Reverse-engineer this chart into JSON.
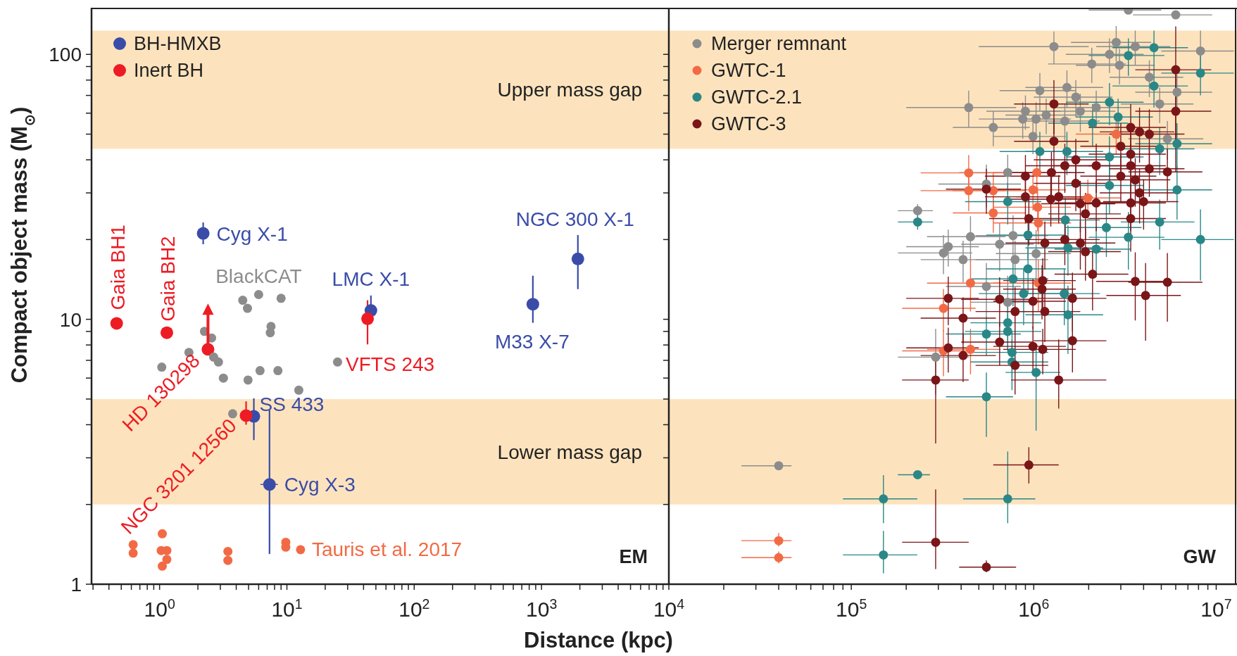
{
  "chart_data": [
    {
      "type": "scatter",
      "xlabel": "Distance (kpc)",
      "ylabel": "Compact object mass (M$_{⊙}$)",
      "log": "xy",
      "marker": "circle",
      "legend": "top left",
      "xlim": [
        0.292,
        10000
      ],
      "ylim": [
        1,
        150
      ],
      "xticks": [
        {
          "value": 0.3,
          "label": null
        },
        {
          "value": 0.4,
          "label": null
        },
        {
          "value": 0.5,
          "label": null
        },
        {
          "value": 0.6,
          "label": null
        },
        {
          "value": 0.7,
          "label": null
        },
        {
          "value": 0.8,
          "label": null
        },
        {
          "value": 0.9,
          "label": null
        },
        {
          "value": 1,
          "label": "10$^{0}$"
        },
        {
          "value": 2,
          "label": null
        },
        {
          "value": 3,
          "label": null
        },
        {
          "value": 4,
          "label": null
        },
        {
          "value": 5,
          "label": null
        },
        {
          "value": 6,
          "label": null
        },
        {
          "value": 7,
          "label": null
        },
        {
          "value": 8,
          "label": null
        },
        {
          "value": 9,
          "label": null
        },
        {
          "value": 10,
          "label": "10$^{1}$"
        },
        {
          "value": 20,
          "label": null
        },
        {
          "value": 30,
          "label": null
        },
        {
          "value": 40,
          "label": null
        },
        {
          "value": 50,
          "label": null
        },
        {
          "value": 60,
          "label": null
        },
        {
          "value": 70,
          "label": null
        },
        {
          "value": 80,
          "label": null
        },
        {
          "value": 90,
          "label": null
        },
        {
          "value": 100,
          "label": "10$^{2}$"
        },
        {
          "value": 200,
          "label": null
        },
        {
          "value": 300,
          "label": null
        },
        {
          "value": 400,
          "label": null
        },
        {
          "value": 500,
          "label": null
        },
        {
          "value": 600,
          "label": null
        },
        {
          "value": 700,
          "label": null
        },
        {
          "value": 800,
          "label": null
        },
        {
          "value": 900,
          "label": null
        },
        {
          "value": 1000,
          "label": "10$^{3}$"
        },
        {
          "value": 2000,
          "label": null
        },
        {
          "value": 3000,
          "label": null
        },
        {
          "value": 4000,
          "label": null
        },
        {
          "value": 5000,
          "label": null
        },
        {
          "value": 6000,
          "label": null
        },
        {
          "value": 7000,
          "label": null
        },
        {
          "value": 8000,
          "label": null
        },
        {
          "value": 9000,
          "label": null
        }
      ],
      "yticks": [
        1,
        {
          "value": 2,
          "label": null
        },
        {
          "value": 3,
          "label": null
        },
        {
          "value": 4,
          "label": null
        },
        {
          "value": 5,
          "label": null
        },
        {
          "value": 6,
          "label": null
        },
        {
          "value": 7,
          "label": null
        },
        {
          "value": 8,
          "label": null
        },
        {
          "value": 9,
          "label": null
        },
        10,
        {
          "value": 20,
          "label": null
        },
        {
          "value": 30,
          "label": null
        },
        {
          "value": 40,
          "label": null
        },
        {
          "value": 50,
          "label": null
        },
        {
          "value": 60,
          "label": null
        },
        {
          "value": 70,
          "label": null
        },
        {
          "value": 80,
          "label": null
        },
        {
          "value": 90,
          "label": null
        },
        100
      ],
      "bands": [
        {
          "axis": "y",
          "from": 44,
          "to": 123,
          "label": "Upper mass gap",
          "color": "#fde3bd"
        },
        {
          "axis": "y",
          "from": 2,
          "to": 5,
          "label": "Lower mass gap",
          "color": "#fde3bd"
        }
      ],
      "series": [
        {
          "name": "BH-HMXB",
          "color": "#3a4ca8",
          "x": [
            2.2,
            45.7,
            855,
            1930,
            5.5,
            7.3
          ],
          "values": [
            21.1,
            10.8,
            11.4,
            16.9,
            4.3,
            2.38
          ],
          "errors": [
            [
              19.2,
              23.2
            ],
            [
              9.9,
              12.3
            ],
            [
              9.7,
              14.6
            ],
            [
              13,
              20.8
            ],
            [
              3.5,
              5.03
            ],
            [
              1.3,
              4.54
            ]
          ],
          "xerrors": [
            null,
            null,
            null,
            null,
            null,
            [
              6.2,
              8.5
            ]
          ]
        },
        {
          "name": "Inert BH",
          "color": "#ed1c24",
          "x": [
            0.46,
            1.14,
            2.4,
            4.78,
            43
          ],
          "values": [
            9.65,
            8.9,
            7.7,
            4.33,
            10.05
          ],
          "errors": [
            null,
            null,
            null,
            [
              4.0,
              4.9
            ],
            [
              8.04,
              11.8
            ]
          ]
        },
        {
          "name": "BlackCAT",
          "color": "#8c8c8c",
          "x": [
            4.5,
            6.0,
            9.0,
            4.9,
            7.5,
            7.4,
            1.7,
            1.04,
            2.25,
            2.56,
            2.66,
            2.9,
            3.17,
            4.95,
            6.15,
            8.5,
            12.4,
            3.75,
            25
          ],
          "values": [
            11.8,
            12.4,
            12.0,
            11.0,
            9.4,
            8.9,
            7.5,
            6.6,
            9.0,
            8.5,
            7.2,
            6.9,
            6.0,
            5.9,
            6.4,
            6.4,
            5.4,
            4.4,
            6.9
          ]
        },
        {
          "name": "Tauris et al. 2017",
          "color": "#f26a45",
          "x": [
            1.05,
            0.62,
            0.62,
            1.03,
            1.14,
            1.14,
            1.05,
            3.44,
            3.44,
            9.8,
            9.8,
            12.8
          ],
          "values": [
            1.55,
            1.41,
            1.31,
            1.34,
            1.34,
            1.24,
            1.17,
            1.33,
            1.23,
            1.44,
            1.38,
            1.35
          ]
        }
      ],
      "annotations": [
        {
          "text": "Gaia BH1",
          "x": 0.46,
          "y": 9.65
        },
        {
          "text": "Gaia BH2",
          "x": 1.14,
          "y": 8.9
        },
        {
          "text": "HD 130298",
          "x": 2.4,
          "y": 7.7
        },
        {
          "text": "NGC 3201 12560",
          "x": 4.78,
          "y": 4.33
        },
        {
          "text": "VFTS 243",
          "x": 43,
          "y": 10.05
        },
        {
          "text": "Cyg X-1",
          "x": 2.2,
          "y": 21.1
        },
        {
          "text": "LMC X-1",
          "x": 45.7,
          "y": 10.8
        },
        {
          "text": "M33 X-7",
          "x": 855,
          "y": 11.4
        },
        {
          "text": "NGC 300 X-1",
          "x": 1930,
          "y": 16.9
        },
        {
          "text": "SS 433",
          "x": 5.5,
          "y": 4.3
        },
        {
          "text": "Cyg X-3",
          "x": 7.3,
          "y": 2.38
        },
        "EM"
      ]
    },
    {
      "type": "scatter",
      "log": "xy",
      "marker": "circle",
      "legend": "top left",
      "tick_labels": "x",
      "xlim": [
        10000,
        13000000
      ],
      "ylim": [
        1,
        150
      ],
      "xticks": [
        {
          "value": 10000,
          "label": "10$^{4}$"
        },
        {
          "value": 20000,
          "label": null
        },
        {
          "value": 30000,
          "label": null
        },
        {
          "value": 40000,
          "label": null
        },
        {
          "value": 50000,
          "label": null
        },
        {
          "value": 60000,
          "label": null
        },
        {
          "value": 70000,
          "label": null
        },
        {
          "value": 80000,
          "label": null
        },
        {
          "value": 90000,
          "label": null
        },
        {
          "value": 100000,
          "label": "10$^{5}$"
        },
        {
          "value": 200000,
          "label": null
        },
        {
          "value": 300000,
          "label": null
        },
        {
          "value": 400000,
          "label": null
        },
        {
          "value": 500000,
          "label": null
        },
        {
          "value": 600000,
          "label": null
        },
        {
          "value": 700000,
          "label": null
        },
        {
          "value": 800000,
          "label": null
        },
        {
          "value": 900000,
          "label": null
        },
        {
          "value": 1000000,
          "label": "10$^{6}$"
        },
        {
          "value": 2000000,
          "label": null
        },
        {
          "value": 3000000,
          "label": null
        },
        {
          "value": 4000000,
          "label": null
        },
        {
          "value": 5000000,
          "label": null
        },
        {
          "value": 6000000,
          "label": null
        },
        {
          "value": 7000000,
          "label": null
        },
        {
          "value": 8000000,
          "label": null
        },
        {
          "value": 9000000,
          "label": null
        },
        {
          "value": 10000000,
          "label": "10$^{7}$"
        }
      ],
      "yticks": [
        1,
        {
          "value": 2,
          "label": null
        },
        {
          "value": 3,
          "label": null
        },
        {
          "value": 4,
          "label": null
        },
        {
          "value": 5,
          "label": null
        },
        {
          "value": 6,
          "label": null
        },
        {
          "value": 7,
          "label": null
        },
        {
          "value": 8,
          "label": null
        },
        {
          "value": 9,
          "label": null
        },
        10,
        {
          "value": 20,
          "label": null
        },
        {
          "value": 30,
          "label": null
        },
        {
          "value": 40,
          "label": null
        },
        {
          "value": 50,
          "label": null
        },
        {
          "value": 60,
          "label": null
        },
        {
          "value": 70,
          "label": null
        },
        {
          "value": 80,
          "label": null
        },
        {
          "value": 90,
          "label": null
        },
        100
      ],
      "bands": [
        {
          "axis": "y",
          "from": 44,
          "to": 123,
          "color": "#fde3bd"
        },
        {
          "axis": "y",
          "from": 2,
          "to": 5,
          "color": "#fde3bd"
        }
      ],
      "series": [
        {
          "name": "Merger remnant",
          "color": "#8c8c8c",
          "x": [
            40000.0,
            231000.0,
            320000.0,
            340000.0,
            410000.0,
            450000.0,
            290000.0,
            550000.0,
            650000.0,
            720000.0,
            720000.0,
            770000.0,
            790000.0,
            1030000.0,
            550000.0,
            440000.0,
            600000.0,
            870000.0,
            900000.0,
            990000.0,
            1030000.0,
            1080000.0,
            1170000.0,
            1290000.0,
            1480000.0,
            1520000.0,
            1700000.0,
            1800000.0,
            2080000.0,
            2200000.0,
            2600000.0,
            2830000.0,
            2950000.0,
            3300000.0,
            3600000.0,
            4300000.0,
            4900000.0,
            5400000.0,
            6000000.0,
            6100000.0,
            8200000.0
          ],
          "values": [
            2.8,
            25.7,
            17.8,
            18.8,
            16.8,
            20.5,
            7.2,
            13.3,
            19.2,
            11.6,
            35.8,
            20.7,
            16.8,
            17.7,
            32.4,
            63,
            53,
            57,
            61,
            49,
            57,
            73,
            59,
            107,
            56,
            75,
            69,
            61,
            92,
            63,
            100,
            111,
            91,
            147,
            107,
            82,
            65,
            48,
            141,
            72,
            103
          ],
          "errors": [
            null,
            1.5,
            3,
            3,
            3,
            4,
            2,
            3,
            4,
            3,
            6,
            4,
            3,
            4,
            6,
            10,
            8,
            9,
            9,
            7,
            9,
            12,
            9,
            15,
            9,
            12,
            11,
            10,
            14,
            10,
            15,
            17,
            14,
            null,
            16,
            13,
            10,
            8,
            null,
            12,
            20
          ],
          "xerrors": [
            [
              25000.0,
              47000.0
            ],
            [
              180000.0,
              280000.0
            ],
            [
              180000.0,
              460000.0
            ],
            [
              200000.0,
              500000.0
            ],
            [
              240000.0,
              650000.0
            ],
            [
              260000.0,
              700000.0
            ],
            [
              180000.0,
              440000.0
            ],
            [
              330000.0,
              850000.0
            ],
            [
              400000.0,
              1000000.0
            ],
            [
              450000.0,
              1100000.0
            ],
            [
              390000.0,
              1100000.0
            ],
            [
              480000.0,
              1200000.0
            ],
            [
              480000.0,
              1200000.0
            ],
            [
              620000.0,
              1600000.0
            ],
            [
              300000.0,
              850000.0
            ],
            [
              200000.0,
              800000.0
            ],
            [
              360000.0,
              950000.0
            ],
            [
              500000.0,
              1400000.0
            ],
            [
              550000.0,
              1400000.0
            ],
            [
              600000.0,
              1500000.0
            ],
            [
              600000.0,
              1600000.0
            ],
            [
              650000.0,
              1700000.0
            ],
            [
              700000.0,
              1800000.0
            ],
            [
              500000.0,
              2000000.0
            ],
            [
              900000.0,
              2300000.0
            ],
            [
              900000.0,
              2400000.0
            ],
            [
              1000000.0,
              2700000.0
            ],
            [
              1100000.0,
              2800000.0
            ],
            [
              1200000.0,
              3200000.0
            ],
            [
              1300000.0,
              3400000.0
            ],
            [
              1500000.0,
              4000000.0
            ],
            [
              1600000.0,
              4400000.0
            ],
            [
              1700000.0,
              4600000.0
            ],
            [
              2000000.0,
              5000000.0
            ],
            [
              2200000.0,
              5600000.0
            ],
            [
              2600000.0,
              6600000.0
            ],
            [
              3000000.0,
              7500000.0
            ],
            [
              3300000.0,
              8500000.0
            ],
            [
              3500000.0,
              9500000.0
            ],
            [
              3600000.0,
              9500000.0
            ],
            [
              5000000.0,
              12500000.0
            ]
          ]
        },
        {
          "name": "GWTC-1",
          "color": "#f26a45",
          "x": [
            40000.0,
            40000.0,
            320000.0,
            450000.0,
            320000.0,
            450000.0,
            1060000.0,
            1060000.0,
            600000.0,
            440000.0,
            600000.0,
            440000.0,
            990000.0,
            1050000.0,
            1040000.0,
            1980000.0,
            2830000.0
          ],
          "values": [
            1.46,
            1.26,
            7.6,
            7.7,
            11.0,
            13.7,
            13.7,
            23.1,
            25.2,
            30.6,
            30.6,
            35.7,
            30.8,
            26.5,
            35.8,
            28.7,
            50
          ],
          "errors": [
            [
              1.39,
              1.56
            ],
            [
              1.2,
              1.33
            ],
            1.5,
            1.5,
            2,
            3,
            3,
            4,
            4,
            5,
            5,
            6,
            5,
            5,
            6,
            5,
            8
          ],
          "xerrors": [
            [
              25000.0,
              47000.0
            ],
            [
              25000.0,
              47000.0
            ],
            [
              190000.0,
              460000.0
            ],
            [
              260000.0,
              660000.0
            ],
            [
              190000.0,
              480000.0
            ],
            [
              260000.0,
              660000.0
            ],
            [
              600000.0,
              1600000.0
            ],
            [
              600000.0,
              1600000.0
            ],
            [
              360000.0,
              900000.0
            ],
            [
              240000.0,
              700000.0
            ],
            [
              360000.0,
              900000.0
            ],
            [
              240000.0,
              700000.0
            ],
            [
              600000.0,
              1500000.0
            ],
            [
              600000.0,
              1600000.0
            ],
            [
              600000.0,
              1600000.0
            ],
            [
              1200000.0,
              3000000.0
            ],
            [
              1700000.0,
              4600000.0
            ]
          ]
        },
        {
          "name": "GWTC-2.1",
          "color": "#2a8787",
          "x": [
            231000.0,
            231000.0,
            150000.0,
            150000.0,
            720000.0,
            550000.0,
            1030000.0,
            550000.0,
            720000.0,
            760000.0,
            760000.0,
            720000.0,
            880000.0,
            770000.0,
            930000.0,
            1470000.0,
            1540000.0,
            1540000.0,
            930000.0,
            720000.0,
            1490000.0,
            2200000.0,
            2500000.0,
            3300000.0,
            4900000.0,
            8200000.0,
            2600000.0,
            6100000.0,
            1080000.0,
            1520000.0,
            2600000.0,
            4900000.0,
            6100000.0,
            2100000.0,
            2900000.0,
            2600000.0,
            4560000.0,
            8200000.0,
            3300000.0,
            4560000.0
          ],
          "values": [
            23.3,
            2.59,
            2.1,
            1.29,
            2.1,
            5.1,
            6.3,
            8.8,
            9.0,
            7.5,
            6.9,
            9.7,
            12.5,
            14.2,
            15.5,
            12.5,
            10.4,
            18.6,
            20.8,
            27.8,
            23.7,
            18.4,
            22.2,
            20.4,
            23.3,
            20.0,
            32,
            30.8,
            43,
            43,
            41,
            44,
            46,
            55,
            58,
            66,
            76,
            85,
            99,
            106
          ],
          "errors": [
            1.5,
            null,
            [
              1.7,
              2.58
            ],
            [
              1.1,
              1.59
            ],
            [
              1.7,
              3.17
            ],
            [
              3.6,
              6.3
            ],
            [
              3.8,
              8.0
            ],
            1.5,
            1.5,
            1.5,
            1.5,
            2,
            3,
            3,
            3,
            3,
            3,
            4,
            4,
            5,
            5,
            4,
            5,
            5,
            5,
            6,
            7,
            7,
            8,
            8,
            8,
            9,
            9,
            10,
            10,
            12,
            13,
            15,
            16,
            17
          ],
          "xerrors": [
            [
              180000.0,
              280000.0
            ],
            [
              180000.0,
              270000.0
            ],
            [
              90000.0,
              230000.0
            ],
            [
              90000.0,
              230000.0
            ],
            [
              410000.0,
              1020000.0
            ],
            [
              330000.0,
              770000.0
            ],
            [
              700000.0,
              1400000.0
            ],
            [
              330000.0,
              850000.0
            ],
            [
              420000.0,
              1100000.0
            ],
            [
              450000.0,
              1200000.0
            ],
            [
              450000.0,
              1200000.0
            ],
            [
              450000.0,
              1100000.0
            ],
            [
              500000.0,
              1400000.0
            ],
            [
              450000.0,
              1200000.0
            ],
            [
              550000.0,
              1500000.0
            ],
            [
              900000.0,
              2300000.0
            ],
            [
              900000.0,
              2400000.0
            ],
            [
              900000.0,
              2400000.0
            ],
            [
              550000.0,
              1500000.0
            ],
            [
              420000.0,
              1100000.0
            ],
            [
              900000.0,
              2300000.0
            ],
            [
              1300000.0,
              3400000.0
            ],
            [
              1500000.0,
              3900000.0
            ],
            [
              2000000.0,
              5200000.0
            ],
            [
              3000000.0,
              7600000.0
            ],
            [
              5000000.0,
              12500000.0
            ],
            [
              1500000.0,
              4000000.0
            ],
            [
              3600000.0,
              9500000.0
            ],
            [
              650000.0,
              1700000.0
            ],
            [
              900000.0,
              2400000.0
            ],
            [
              1500000.0,
              4000000.0
            ],
            [
              3000000.0,
              7600000.0
            ],
            [
              3600000.0,
              9500000.0
            ],
            [
              1200000.0,
              3300000.0
            ],
            [
              1700000.0,
              4500000.0
            ],
            [
              1500000.0,
              4000000.0
            ],
            [
              2700000.0,
              7000000.0
            ],
            [
              5000000.0,
              12500000.0
            ],
            [
              2000000.0,
              5200000.0
            ],
            [
              2700000.0,
              7000000.0
            ]
          ]
        },
        {
          "name": "GWTC-3",
          "color": "#7a1518",
          "x": [
            290000.0,
            550000.0,
            940000.0,
            290000.0,
            1370000.0,
            340000.0,
            410000.0,
            650000.0,
            790000.0,
            990000.0,
            1120000.0,
            1630000.0,
            410000.0,
            340000.0,
            650000.0,
            790000.0,
            990000.0,
            1150000.0,
            1110000.0,
            1120000.0,
            1630000.0,
            2100000.0,
            3600000.0,
            5400000.0,
            4100000.0,
            1150000.0,
            1480000.0,
            1800000.0,
            1920000.0,
            940000.0,
            1920000.0,
            3400000.0,
            550000.0,
            900000.0,
            1370000.0,
            1240000.0,
            1800000.0,
            2200000.0,
            3400000.0,
            4000000.0,
            3800000.0,
            1700000.0,
            3600000.0,
            900000.0,
            1250000.0,
            3000000.0,
            1480000.0,
            2200000.0,
            3400000.0,
            5400000.0,
            4300000.0,
            1700000.0,
            3400000.0,
            3000000.0,
            1290000.0,
            3400000.0,
            3800000.0,
            4300000.0,
            6000000.0,
            1290000.0,
            6000000.0
          ],
          "values": [
            1.44,
            1.16,
            2.82,
            5.9,
            5.9,
            7.8,
            7.3,
            8.2,
            6.7,
            7.9,
            7.7,
            8.3,
            10.1,
            12.0,
            11.9,
            10.7,
            11.7,
            10.7,
            13.0,
            14.0,
            12.0,
            14.8,
            13.9,
            13.8,
            12.3,
            19.4,
            20.0,
            19.4,
            18.0,
            24.0,
            25.0,
            24,
            31,
            29,
            29,
            28.4,
            27.3,
            27.5,
            27.5,
            27.8,
            30,
            32.6,
            33.6,
            34.7,
            35.8,
            34.7,
            38,
            38,
            38,
            36,
            37,
            40,
            42,
            45,
            47,
            53,
            51,
            50,
            61,
            65,
            87.5
          ],
          "errors": [
            [
              1.14,
              2.28
            ],
            [
              1.11,
              1.23
            ],
            [
              2.4,
              3.29
            ],
            [
              3.4,
              7.0
            ],
            [
              4.6,
              8.4
            ],
            1.5,
            1.5,
            1.5,
            1.5,
            1.5,
            1.5,
            2,
            2,
            2.5,
            2.5,
            2.5,
            2.5,
            2.5,
            3,
            3,
            3,
            4,
            4,
            4,
            4,
            4,
            4,
            4,
            4,
            5,
            5,
            6,
            6,
            6,
            6,
            6,
            6,
            6,
            6,
            6,
            7,
            7,
            7,
            7,
            7,
            7,
            8,
            8,
            8,
            8,
            8,
            8,
            9,
            10,
            10,
            12,
            12,
            12,
            25,
            15,
            40
          ],
          "xerrors": [
            [
              190000.0,
              440000.0
            ],
            [
              390000.0,
              800000.0
            ],
            [
              600000.0,
              1370000.0
            ],
            [
              190000.0,
              440000.0
            ],
            [
              750000.0,
              2500000.0
            ],
            [
              200000.0,
              500000.0
            ],
            [
              240000.0,
              620000.0
            ],
            [
              400000.0,
              1000000.0
            ],
            [
              480000.0,
              1200000.0
            ],
            [
              600000.0,
              1500000.0
            ],
            [
              680000.0,
              1700000.0
            ],
            [
              1000000.0,
              2500000.0
            ],
            [
              240000.0,
              620000.0
            ],
            [
              200000.0,
              500000.0
            ],
            [
              400000.0,
              1000000.0
            ],
            [
              480000.0,
              1200000.0
            ],
            [
              600000.0,
              1500000.0
            ],
            [
              700000.0,
              1800000.0
            ],
            [
              680000.0,
              1700000.0
            ],
            [
              680000.0,
              1700000.0
            ],
            [
              1000000.0,
              2500000.0
            ],
            [
              1300000.0,
              3300000.0
            ],
            [
              2200000.0,
              5600000.0
            ],
            [
              3300000.0,
              8400000.0
            ],
            [
              2500000.0,
              6400000.0
            ],
            [
              700000.0,
              1700000.0
            ],
            [
              900000.0,
              2300000.0
            ],
            [
              1100000.0,
              2800000.0
            ],
            [
              1200000.0,
              3000000.0
            ],
            [
              570000.0,
              1500000.0
            ],
            [
              1200000.0,
              3000000.0
            ],
            [
              2000000.0,
              5300000.0
            ],
            [
              330000.0,
              850000.0
            ],
            [
              540000.0,
              1400000.0
            ],
            [
              800000.0,
              2100000.0
            ],
            [
              750000.0,
              1900000.0
            ],
            [
              1100000.0,
              2800000.0
            ],
            [
              1300000.0,
              3200000.0
            ],
            [
              2000000.0,
              5300000.0
            ],
            [
              2400000.0,
              6200000.0
            ],
            [
              2300000.0,
              5900000.0
            ],
            [
              1000000.0,
              2600000.0
            ],
            [
              2200000.0,
              5600000.0
            ],
            [
              540000.0,
              1400000.0
            ],
            [
              750000.0,
              1900000.0
            ],
            [
              1800000.0,
              4700000.0
            ],
            [
              900000.0,
              2300000.0
            ],
            [
              1300000.0,
              3200000.0
            ],
            [
              2000000.0,
              5300000.0
            ],
            [
              3300000.0,
              8400000.0
            ],
            [
              2600000.0,
              6700000.0
            ],
            [
              1000000.0,
              2600000.0
            ],
            [
              2000000.0,
              5300000.0
            ],
            [
              1800000.0,
              4700000.0
            ],
            [
              780000.0,
              2000000.0
            ],
            [
              2000000.0,
              5300000.0
            ],
            [
              2300000.0,
              5900000.0
            ],
            [
              2600000.0,
              6700000.0
            ],
            [
              3600000.0,
              9400000.0
            ],
            [
              780000.0,
              2000000.0
            ],
            [
              3600000.0,
              9400000.0
            ]
          ]
        }
      ],
      "annotations": [
        "GW"
      ]
    }
  ]
}
